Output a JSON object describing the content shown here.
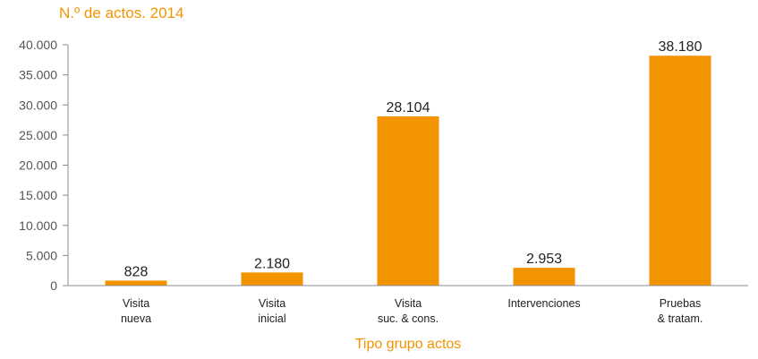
{
  "chart_data": {
    "type": "bar",
    "title": "N.º de actos. 2014",
    "xlabel": "Tipo grupo actos",
    "ylabel": "",
    "categories": [
      [
        "Visita",
        "nueva"
      ],
      [
        "Visita",
        "inicial"
      ],
      [
        "Visita",
        "suc. & cons."
      ],
      [
        "Intervenciones"
      ],
      [
        "Pruebas",
        "& tratam."
      ]
    ],
    "values": [
      828,
      2180,
      28104,
      2953,
      38180
    ],
    "value_labels": [
      "828",
      "2.180",
      "28.104",
      "2.953",
      "38.180"
    ],
    "ylim": [
      0,
      40000
    ],
    "yticks": [
      0,
      5000,
      10000,
      15000,
      20000,
      25000,
      30000,
      35000,
      40000
    ],
    "ytick_labels": [
      "0",
      "5.000",
      "10.000",
      "15.000",
      "20.000",
      "25.000",
      "30.000",
      "35.000",
      "40.000"
    ],
    "grid": false,
    "legend": "none",
    "bar_color": "#f29400",
    "axis_color": "#8c8c8c"
  }
}
